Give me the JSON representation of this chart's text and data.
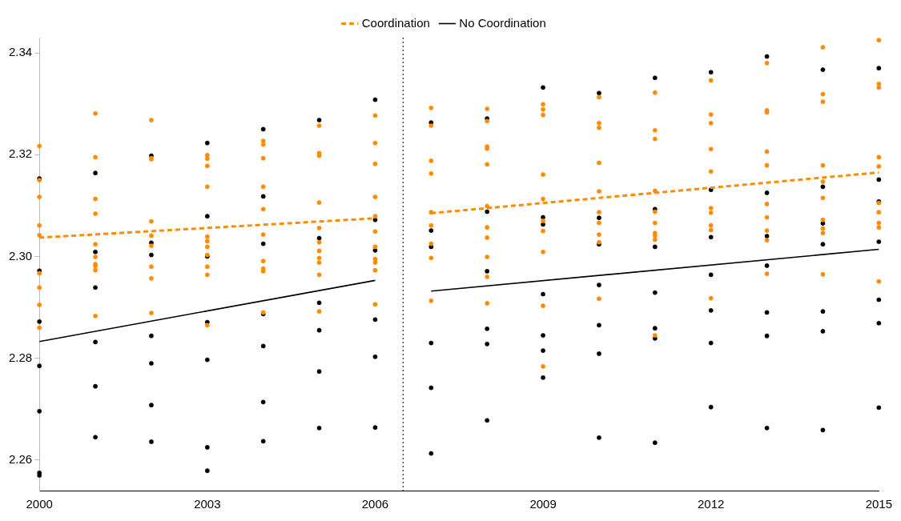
{
  "chart_data": {
    "type": "scatter",
    "xlim": [
      2000,
      2015
    ],
    "xticks": [
      2000,
      2003,
      2006,
      2009,
      2012,
      2015
    ],
    "ylim": [
      2.254,
      2.343
    ],
    "yticks": [
      {
        "value": 2.26,
        "label": "2.26"
      },
      {
        "value": 2.28,
        "label": "2.28"
      },
      {
        "value": 2.3,
        "label": "2.30"
      },
      {
        "value": 2.32,
        "label": "2.32"
      },
      {
        "value": 2.34,
        "label": "2.34"
      }
    ],
    "grid": false,
    "legend": "top",
    "ref_lines": [
      {
        "axis": "x",
        "value": 2006.5,
        "color": "#333333",
        "line_style": "dotted"
      }
    ],
    "series": [
      {
        "type": "scatter",
        "marker": "circle",
        "color": "#ff8c00",
        "x": [
          2000,
          2000,
          2000,
          2000,
          2000,
          2000,
          2000,
          2000,
          2000,
          2001,
          2001,
          2001,
          2001,
          2001,
          2001,
          2001,
          2001,
          2001,
          2001,
          2002,
          2002,
          2002,
          2002,
          2002,
          2002,
          2002,
          2002,
          2002,
          2003,
          2003,
          2003,
          2003,
          2003,
          2003,
          2003,
          2003,
          2003,
          2003,
          2003,
          2004,
          2004,
          2004,
          2004,
          2004,
          2004,
          2004,
          2004,
          2004,
          2004,
          2005,
          2005,
          2005,
          2005,
          2005,
          2005,
          2005,
          2005,
          2005,
          2005,
          2005,
          2006,
          2006,
          2006,
          2006,
          2006,
          2006,
          2006,
          2006,
          2006,
          2006,
          2006,
          2007,
          2007,
          2007,
          2007,
          2007,
          2007,
          2007,
          2007,
          2007,
          2008,
          2008,
          2008,
          2008,
          2008,
          2008,
          2008,
          2008,
          2008,
          2008,
          2008,
          2009,
          2009,
          2009,
          2009,
          2009,
          2009,
          2009,
          2009,
          2009,
          2009,
          2010,
          2010,
          2010,
          2010,
          2010,
          2010,
          2010,
          2010,
          2010,
          2010,
          2011,
          2011,
          2011,
          2011,
          2011,
          2011,
          2011,
          2011,
          2011,
          2011,
          2012,
          2012,
          2012,
          2012,
          2012,
          2012,
          2012,
          2012,
          2012,
          2012,
          2013,
          2013,
          2013,
          2013,
          2013,
          2013,
          2013,
          2013,
          2013,
          2013,
          2014,
          2014,
          2014,
          2014,
          2014,
          2014,
          2014,
          2014,
          2014,
          2014,
          2015,
          2015,
          2015,
          2015,
          2015,
          2015,
          2015,
          2015,
          2015,
          2015
        ],
        "values": [
          2.3217,
          2.315,
          2.3117,
          2.3061,
          2.3042,
          2.2967,
          2.2939,
          2.2905,
          2.286,
          2.3281,
          2.3195,
          2.3113,
          2.3084,
          2.3024,
          2.2999,
          2.2985,
          2.2981,
          2.2973,
          2.2883,
          2.3268,
          2.3193,
          2.3191,
          2.3069,
          2.3041,
          2.3021,
          2.298,
          2.2957,
          2.2889,
          2.3199,
          2.3192,
          2.3178,
          2.3137,
          2.3039,
          2.303,
          2.3019,
          2.3003,
          2.298,
          2.2964,
          2.2865,
          2.3227,
          2.322,
          2.3193,
          2.3137,
          2.3093,
          2.3043,
          2.2991,
          2.2976,
          2.2971,
          2.289,
          2.3257,
          2.3203,
          2.3198,
          2.3106,
          2.3056,
          2.3028,
          2.3011,
          2.2997,
          2.2988,
          2.2964,
          2.2892,
          2.3277,
          2.3223,
          2.3182,
          2.3117,
          2.3079,
          2.3049,
          2.3019,
          2.2995,
          2.2988,
          2.2973,
          2.2906,
          2.3292,
          2.3257,
          2.3188,
          2.3163,
          2.3087,
          2.3061,
          2.3025,
          2.2997,
          2.2913,
          2.329,
          2.3266,
          2.3216,
          2.3212,
          2.3181,
          2.3099,
          2.3057,
          2.3037,
          2.2999,
          2.296,
          2.2908,
          2.3299,
          2.3289,
          2.3278,
          2.3161,
          2.3113,
          2.307,
          2.305,
          2.3009,
          2.2903,
          2.2784,
          2.3313,
          2.3262,
          2.3253,
          2.3184,
          2.3128,
          2.3087,
          2.3066,
          2.3043,
          2.3028,
          2.2917,
          2.3322,
          2.3248,
          2.3231,
          2.3129,
          2.3088,
          2.3066,
          2.3046,
          2.3041,
          2.3033,
          2.2845,
          2.3346,
          2.3279,
          2.3262,
          2.3211,
          2.3167,
          2.3095,
          2.3086,
          2.3061,
          2.3052,
          2.2918,
          2.338,
          2.3287,
          2.3283,
          2.3206,
          2.3179,
          2.3103,
          2.3077,
          2.3051,
          2.3032,
          2.2966,
          2.3411,
          2.3319,
          2.3304,
          2.3179,
          2.3147,
          2.3115,
          2.3072,
          2.3055,
          2.3046,
          2.2965,
          2.3425,
          2.3339,
          2.3332,
          2.3195,
          2.3177,
          2.3105,
          2.3087,
          2.3066,
          2.3057,
          2.2951
        ]
      },
      {
        "type": "scatter",
        "marker": "circle",
        "color": "#000000",
        "x": [
          2000,
          2000,
          2000,
          2000,
          2000,
          2000,
          2000,
          2001,
          2001,
          2001,
          2001,
          2001,
          2001,
          2002,
          2002,
          2002,
          2002,
          2002,
          2002,
          2002,
          2003,
          2003,
          2003,
          2003,
          2003,
          2003,
          2003,
          2004,
          2004,
          2004,
          2004,
          2004,
          2004,
          2004,
          2005,
          2005,
          2005,
          2005,
          2005,
          2005,
          2006,
          2006,
          2006,
          2006,
          2006,
          2006,
          2007,
          2007,
          2007,
          2007,
          2007,
          2007,
          2008,
          2008,
          2008,
          2008,
          2008,
          2008,
          2009,
          2009,
          2009,
          2009,
          2009,
          2009,
          2009,
          2010,
          2010,
          2010,
          2010,
          2010,
          2010,
          2010,
          2011,
          2011,
          2011,
          2011,
          2011,
          2011,
          2011,
          2012,
          2012,
          2012,
          2012,
          2012,
          2012,
          2012,
          2013,
          2013,
          2013,
          2013,
          2013,
          2013,
          2013,
          2014,
          2014,
          2014,
          2014,
          2014,
          2014,
          2014,
          2015,
          2015,
          2015,
          2015,
          2015,
          2015,
          2015
        ],
        "values": [
          2.3153,
          2.2972,
          2.2872,
          2.2785,
          2.2696,
          2.2575,
          2.257,
          2.3164,
          2.3009,
          2.2939,
          2.2832,
          2.2745,
          2.2645,
          2.3198,
          2.3027,
          2.3003,
          2.2844,
          2.279,
          2.2708,
          2.2636,
          2.3223,
          2.3079,
          2.3,
          2.2871,
          2.2797,
          2.2625,
          2.2579,
          2.325,
          2.3118,
          2.3025,
          2.2887,
          2.2824,
          2.2714,
          2.2637,
          2.3268,
          2.3036,
          2.2909,
          2.2855,
          2.2774,
          2.2663,
          2.3308,
          2.3072,
          2.3012,
          2.2876,
          2.2803,
          2.2664,
          2.3263,
          2.3051,
          2.3019,
          2.283,
          2.2742,
          2.2613,
          2.3271,
          2.3088,
          2.2971,
          2.2858,
          2.2828,
          2.2678,
          2.3332,
          2.3077,
          2.3063,
          2.2926,
          2.2845,
          2.2815,
          2.2762,
          2.3321,
          2.3076,
          2.3024,
          2.2944,
          2.2865,
          2.2809,
          2.2644,
          2.3351,
          2.3093,
          2.3019,
          2.2929,
          2.2859,
          2.2839,
          2.2634,
          2.3362,
          2.3131,
          2.3038,
          2.2964,
          2.2894,
          2.283,
          2.2704,
          2.3393,
          2.3125,
          2.304,
          2.2982,
          2.289,
          2.2844,
          2.2663,
          2.3367,
          2.3137,
          2.3065,
          2.3024,
          2.2892,
          2.2853,
          2.2659,
          2.337,
          2.3151,
          2.3108,
          2.3029,
          2.2915,
          2.2869,
          2.2703
        ]
      },
      {
        "type": "line",
        "marker": "none",
        "name": "Coordination",
        "color": "#ff8c00",
        "line_style": "dashed",
        "x": [
          2000,
          2006
        ],
        "values": [
          2.3037,
          2.3075
        ]
      },
      {
        "type": "line",
        "marker": "none",
        "color": "#ff8c00",
        "line_style": "dashed",
        "x": [
          2007,
          2015
        ],
        "values": [
          2.3085,
          2.3165
        ]
      },
      {
        "type": "line",
        "marker": "none",
        "name": "No Coordination",
        "color": "#000000",
        "line_style": "solid",
        "x": [
          2000,
          2006
        ],
        "values": [
          2.2833,
          2.2953
        ]
      },
      {
        "type": "line",
        "marker": "none",
        "color": "#000000",
        "line_style": "solid",
        "x": [
          2007,
          2015
        ],
        "values": [
          2.2932,
          2.3014
        ]
      }
    ]
  }
}
